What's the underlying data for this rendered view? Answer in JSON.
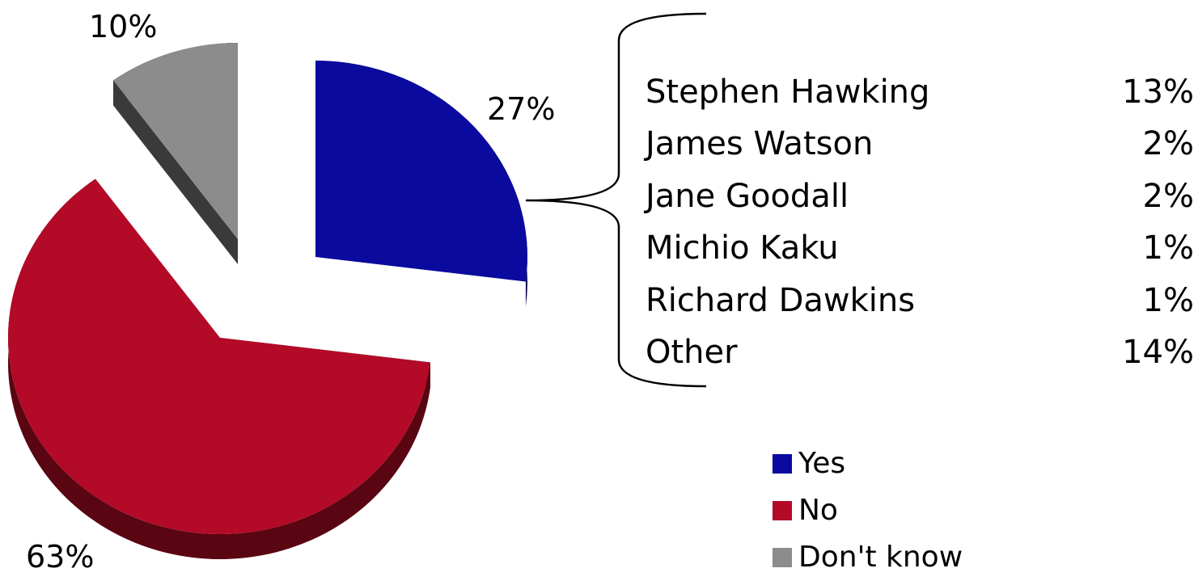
{
  "chart_data": {
    "type": "pie",
    "categories": [
      "Yes",
      "No",
      "Don't know"
    ],
    "values": [
      27,
      63,
      10
    ],
    "value_labels": [
      "27%",
      "63%",
      "10%"
    ],
    "colors": [
      "#0a0a9e",
      "#b30a28",
      "#8c8c8c"
    ],
    "shade_colors": [
      "#050552",
      "#5a0512",
      "#3a3a3a"
    ],
    "legend": {
      "position": "bottom-right",
      "entries": [
        "Yes",
        "No",
        "Don't know"
      ]
    },
    "breakdown_of": "Yes",
    "breakdown": [
      {
        "name": "Stephen Hawking",
        "value": 13,
        "label": "13%"
      },
      {
        "name": "James Watson",
        "value": 2,
        "label": "2%"
      },
      {
        "name": "Jane Goodall",
        "value": 2,
        "label": "2%"
      },
      {
        "name": "Michio Kaku",
        "value": 1,
        "label": "1%"
      },
      {
        "name": "Richard Dawkins",
        "value": 1,
        "label": "1%"
      },
      {
        "name": "Other",
        "value": 14,
        "label": "14%"
      }
    ]
  }
}
